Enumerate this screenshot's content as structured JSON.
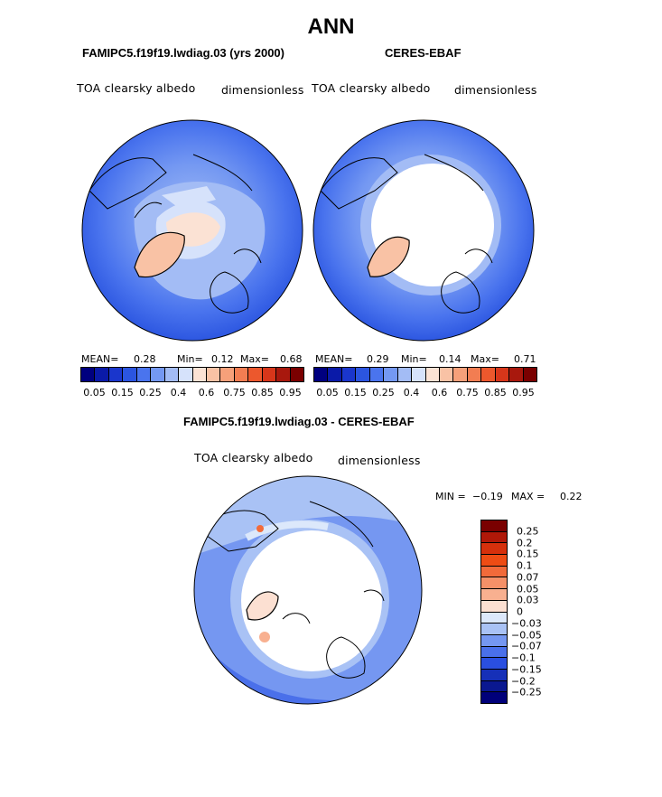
{
  "title": "ANN",
  "panels": [
    {
      "title": "FAMIPC5.f19f19.lwdiag.03 (yrs 2000)",
      "left_subtitle": "TOA clearsky albedo",
      "right_subtitle": "dimensionless",
      "stats": {
        "mean_label": "MEAN=",
        "mean": "0.28",
        "min_label": "Min=",
        "min": "0.12",
        "max_label": "Max=",
        "max": "0.68"
      }
    },
    {
      "title": "CERES-EBAF",
      "left_subtitle": "TOA clearsky albedo",
      "right_subtitle": "dimensionless",
      "stats": {
        "mean_label": "MEAN=",
        "mean": "0.29",
        "min_label": "Min=",
        "min": "0.14",
        "max_label": "Max=",
        "max": "0.71"
      }
    },
    {
      "title": "FAMIPC5.f19f19.lwdiag.03 - CERES-EBAF",
      "left_subtitle": "TOA clearsky albedo",
      "right_subtitle": "dimensionless",
      "stats": {
        "min_label": "MIN =",
        "min": "−0.19",
        "max_label": "MAX =",
        "max": "0.22"
      }
    }
  ],
  "colorbar_abs": {
    "labels": [
      "0.05",
      "0.15",
      "0.25",
      "0.4",
      "0.6",
      "0.75",
      "0.85",
      "0.95"
    ],
    "colors": [
      "#00007f",
      "#0a1aa8",
      "#1a36cc",
      "#2b55e0",
      "#4a74ee",
      "#7498f2",
      "#a3bcf5",
      "#d6e2fb",
      "#fbe2d4",
      "#f9c2a5",
      "#f6a07a",
      "#f27d52",
      "#ec582d",
      "#d7361a",
      "#a8180d",
      "#7a0000"
    ]
  },
  "colorbar_diff": {
    "labels": [
      "0.25",
      "0.2",
      "0.15",
      "0.1",
      "0.07",
      "0.05",
      "0.03",
      "0",
      "−0.03",
      "−0.05",
      "−0.07",
      "−0.1",
      "−0.15",
      "−0.2",
      "−0.25"
    ],
    "colors": [
      "#7a0000",
      "#b01808",
      "#d6300c",
      "#ee4c14",
      "#f26a3a",
      "#f59068",
      "#f8b090",
      "#fce0d2",
      "#dce8fb",
      "#a9c2f5",
      "#7597f1",
      "#4a70ea",
      "#2a4fe0",
      "#1630b8",
      "#0a1890",
      "#00007a"
    ]
  }
}
